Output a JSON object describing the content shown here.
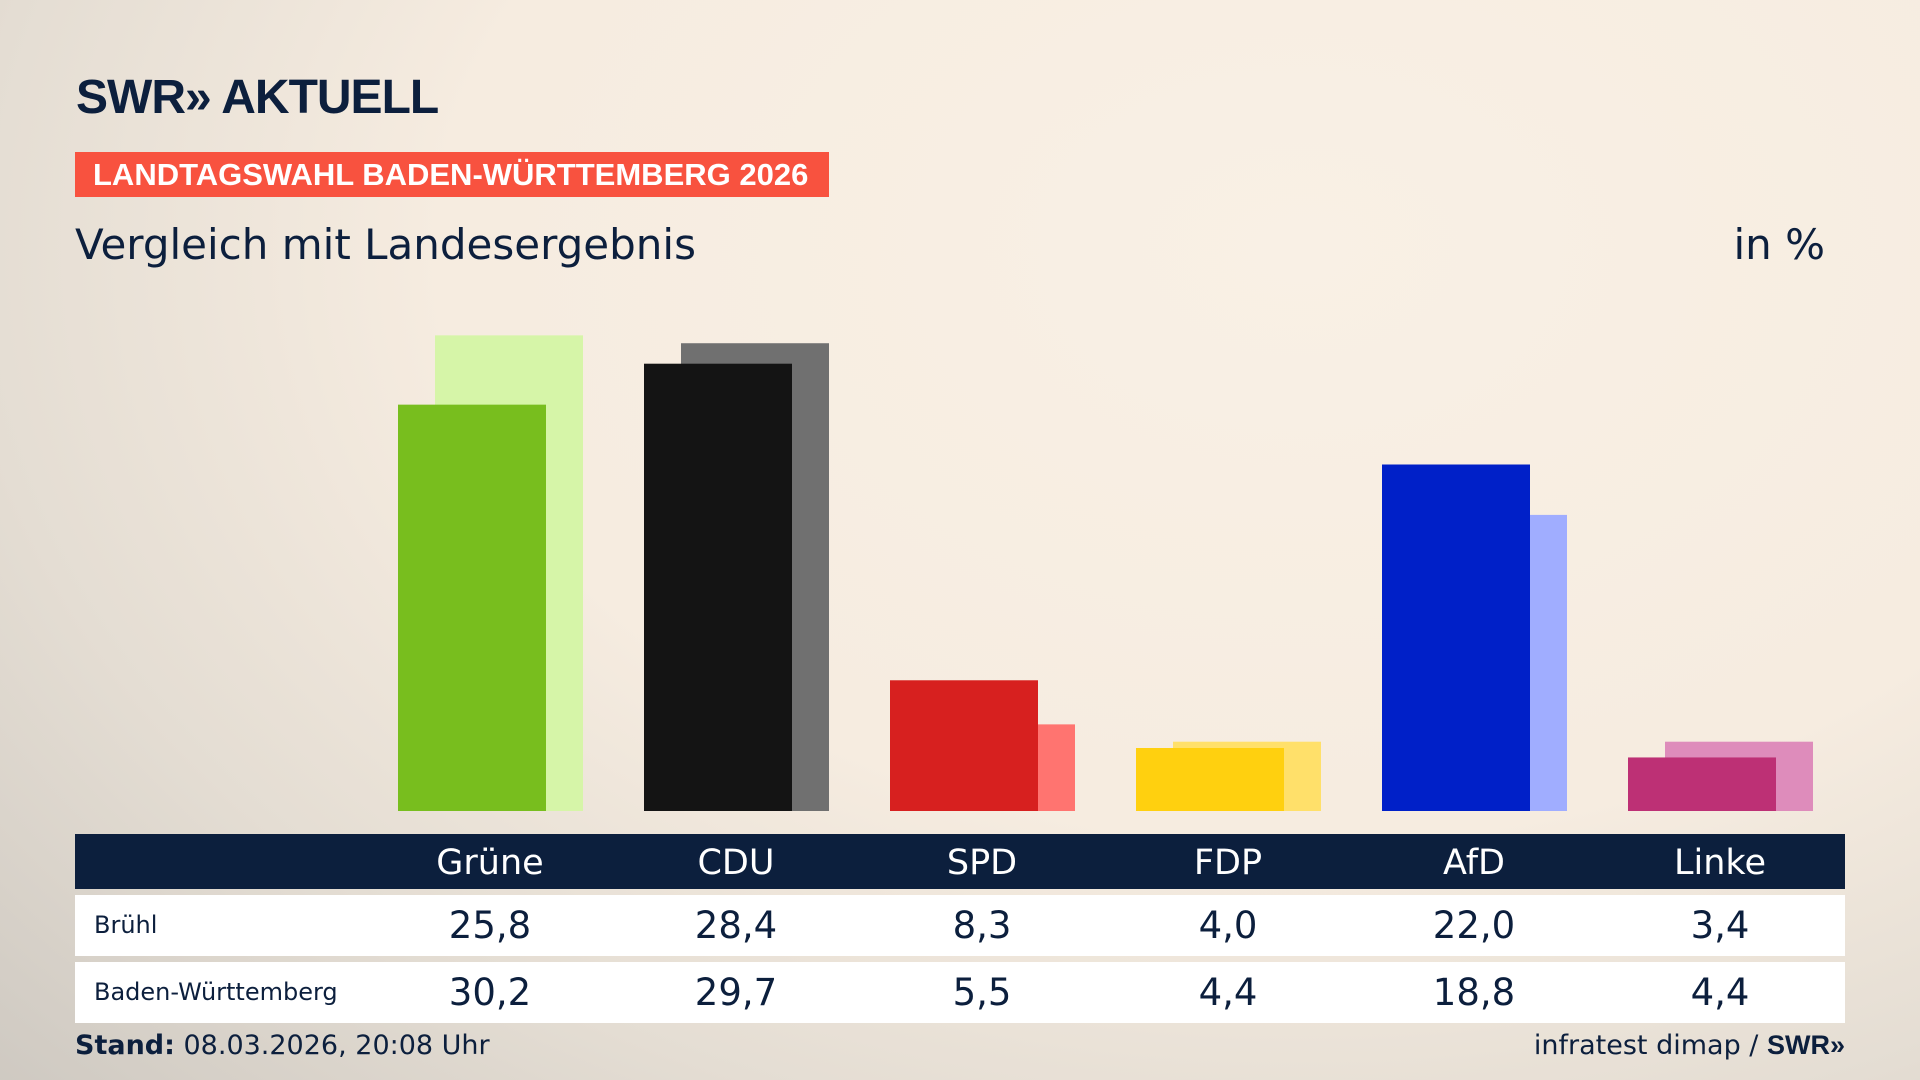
{
  "header": {
    "logo": "SWR» AKTUELL",
    "banner": "LANDTAGSWAHL BADEN-WÜRTTEMBERG 2026",
    "subtitle": "Vergleich mit Landesergebnis",
    "unit": "in %"
  },
  "chart_data": {
    "type": "bar",
    "categories": [
      "Grüne",
      "CDU",
      "SPD",
      "FDP",
      "AfD",
      "Linke"
    ],
    "series": [
      {
        "name": "Brühl",
        "values": [
          25.8,
          28.4,
          8.3,
          4.0,
          22.0,
          3.4
        ],
        "colors": [
          "#78be1e",
          "#141414",
          "#d7201f",
          "#ffd00f",
          "#0020c8",
          "#bd3075"
        ]
      },
      {
        "name": "Baden-Württemberg",
        "values": [
          30.2,
          29.7,
          5.5,
          4.4,
          18.8,
          4.4
        ],
        "colors": [
          "#d6f5a8",
          "#707070",
          "#ff7470",
          "#ffe06a",
          "#a0adff",
          "#de8cbb"
        ]
      }
    ],
    "value_labels": [
      [
        "25,8",
        "28,4",
        "8,3",
        "4,0",
        "22,0",
        "3,4"
      ],
      [
        "30,2",
        "29,7",
        "5,5",
        "4,4",
        "18,8",
        "4,4"
      ]
    ],
    "ylim": [
      0,
      32
    ]
  },
  "footer": {
    "stand_label": "Stand:",
    "stand_value": " 08.03.2026, 20:08 Uhr",
    "source": "infratest dimap / ",
    "source_logo": "SWR»"
  }
}
